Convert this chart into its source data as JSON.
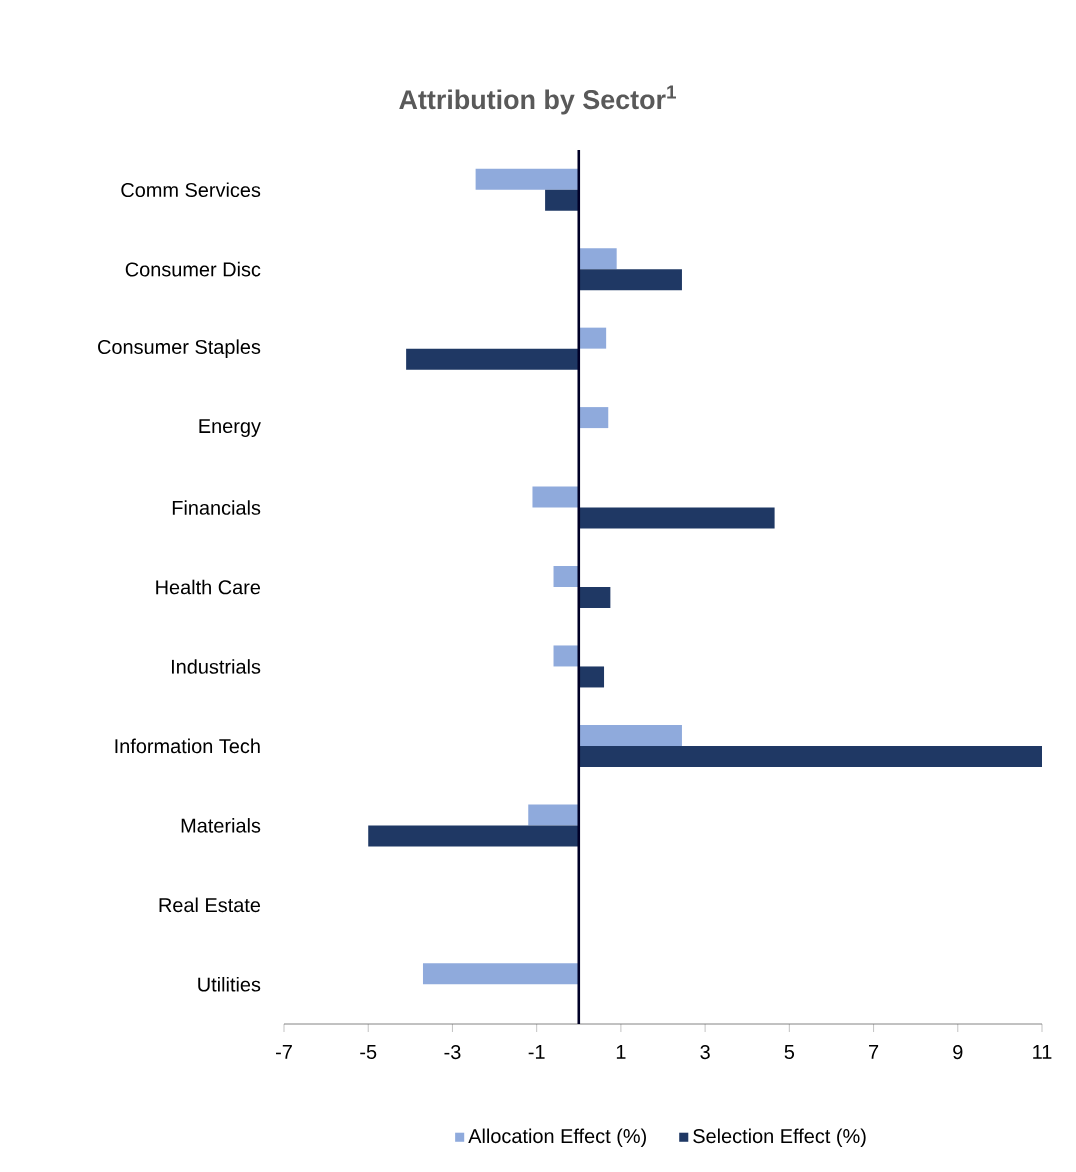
{
  "chart_data": {
    "type": "bar",
    "orientation": "horizontal",
    "title": "Attribution by Sector$^{1}$",
    "categories": [
      "Comm Services",
      "Consumer Disc",
      "Consumer Staples",
      "Energy",
      "Financials",
      "Health Care",
      "Industrials",
      "Information Tech",
      "Materials",
      "Real Estate",
      "Utilities"
    ],
    "series": [
      {
        "name": "Allocation Effect (%)",
        "color": "#8faadc",
        "values": [
          -2.45,
          0.9,
          0.65,
          0.7,
          -1.1,
          -0.6,
          -0.6,
          2.45,
          -1.2,
          0,
          -3.7
        ]
      },
      {
        "name": "Selection Effect (%)",
        "color": "#1f3864",
        "values": [
          -0.8,
          2.45,
          -4.1,
          0,
          4.65,
          0.75,
          0.6,
          11.0,
          -5.0,
          0,
          0
        ]
      }
    ],
    "xlim": [
      -7,
      11
    ],
    "xticks": [
      -7,
      -5,
      -3,
      -1,
      1,
      3,
      5,
      7,
      9,
      11
    ],
    "legend": "bottom"
  }
}
